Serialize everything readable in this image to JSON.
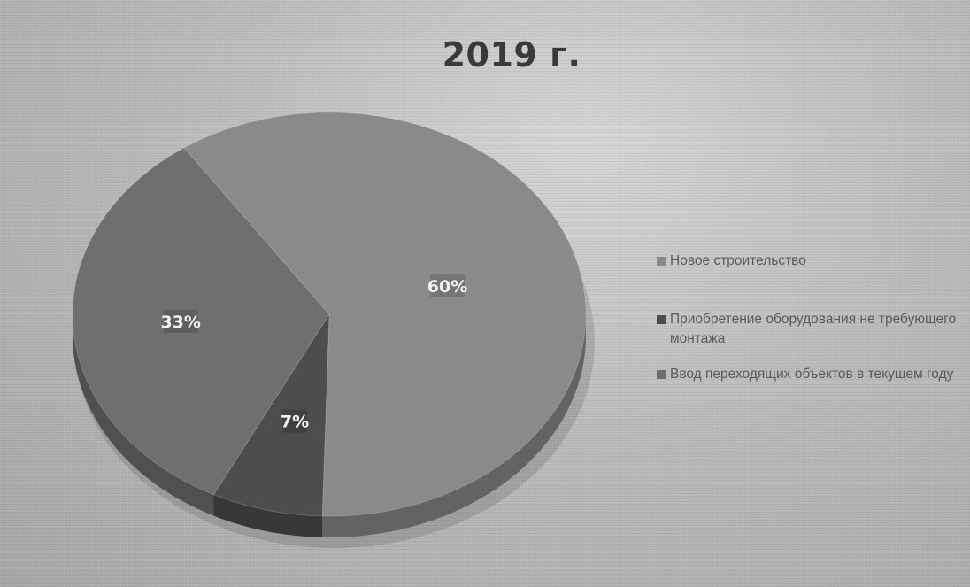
{
  "chart_data": {
    "type": "pie",
    "title": "2019 г.",
    "categories": [
      "Новое строительство",
      "Приобретение оборудования не требующего монтажа",
      "Ввод переходящих объектов в текущем году"
    ],
    "values": [
      60,
      7,
      33
    ],
    "labels": [
      "60%",
      "7%",
      "33%"
    ],
    "colors": [
      "#8a8a8a",
      "#4d4d4d",
      "#6f6f6f"
    ],
    "legend": "right",
    "style": "3d"
  }
}
